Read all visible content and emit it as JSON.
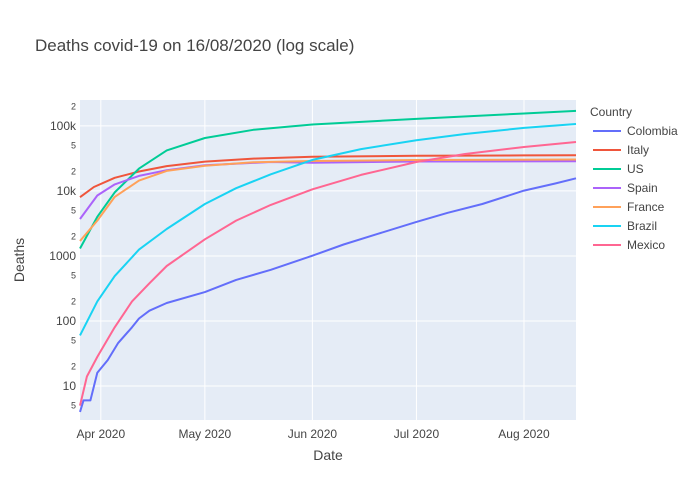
{
  "chart_data": {
    "type": "line",
    "title": "Deaths covid-19 on 16/08/2020  (log scale)",
    "xlabel": "Date",
    "ylabel": "Deaths",
    "y_scale": "log",
    "grid": true,
    "legend_title": "Country",
    "legend_position": "right",
    "xlim": [
      "2020-03-26",
      "2020-08-16"
    ],
    "ylim": [
      3,
      250000
    ],
    "x_ticks": [
      {
        "date": "2020-04-01",
        "label": "Apr 2020"
      },
      {
        "date": "2020-05-01",
        "label": "May 2020"
      },
      {
        "date": "2020-06-01",
        "label": "Jun 2020"
      },
      {
        "date": "2020-07-01",
        "label": "Jul 2020"
      },
      {
        "date": "2020-08-01",
        "label": "Aug 2020"
      }
    ],
    "y_major_ticks": [
      {
        "value": 10,
        "label": "10"
      },
      {
        "value": 100,
        "label": "100"
      },
      {
        "value": 1000,
        "label": "1000"
      },
      {
        "value": 10000,
        "label": "10k"
      },
      {
        "value": 100000,
        "label": "100k"
      }
    ],
    "y_minor_ticks": [
      {
        "value": 5,
        "label": "5"
      },
      {
        "value": 20,
        "label": "2"
      },
      {
        "value": 50,
        "label": "5"
      },
      {
        "value": 200,
        "label": "2"
      },
      {
        "value": 500,
        "label": "5"
      },
      {
        "value": 2000,
        "label": "2"
      },
      {
        "value": 5000,
        "label": "5"
      },
      {
        "value": 20000,
        "label": "2"
      },
      {
        "value": 50000,
        "label": "5"
      },
      {
        "value": 200000,
        "label": "2"
      }
    ],
    "series": [
      {
        "name": "Colombia",
        "color": "#636efa",
        "points": [
          [
            "2020-03-26",
            4
          ],
          [
            "2020-03-27",
            6
          ],
          [
            "2020-03-29",
            6
          ],
          [
            "2020-03-31",
            16
          ],
          [
            "2020-04-03",
            25
          ],
          [
            "2020-04-06",
            46
          ],
          [
            "2020-04-10",
            80
          ],
          [
            "2020-04-12",
            109
          ],
          [
            "2020-04-15",
            144
          ],
          [
            "2020-04-20",
            189
          ],
          [
            "2020-05-01",
            278
          ],
          [
            "2020-05-10",
            428
          ],
          [
            "2020-05-20",
            613
          ],
          [
            "2020-06-01",
            1009
          ],
          [
            "2020-06-10",
            1500
          ],
          [
            "2020-06-20",
            2200
          ],
          [
            "2020-07-01",
            3334
          ],
          [
            "2020-07-10",
            4600
          ],
          [
            "2020-07-20",
            6300
          ],
          [
            "2020-08-01",
            10100
          ],
          [
            "2020-08-10",
            13000
          ],
          [
            "2020-08-16",
            15600
          ]
        ]
      },
      {
        "name": "Italy",
        "color": "#ef553b",
        "points": [
          [
            "2020-03-26",
            8000
          ],
          [
            "2020-03-30",
            11500
          ],
          [
            "2020-04-05",
            15900
          ],
          [
            "2020-04-12",
            19900
          ],
          [
            "2020-04-20",
            24100
          ],
          [
            "2020-05-01",
            28200
          ],
          [
            "2020-05-15",
            31400
          ],
          [
            "2020-06-01",
            33400
          ],
          [
            "2020-07-01",
            34800
          ],
          [
            "2020-08-01",
            35150
          ],
          [
            "2020-08-16",
            35400
          ]
        ]
      },
      {
        "name": "US",
        "color": "#00cc96",
        "points": [
          [
            "2020-03-26",
            1300
          ],
          [
            "2020-03-31",
            4000
          ],
          [
            "2020-04-05",
            9500
          ],
          [
            "2020-04-12",
            22000
          ],
          [
            "2020-04-20",
            42000
          ],
          [
            "2020-05-01",
            65000
          ],
          [
            "2020-05-15",
            87000
          ],
          [
            "2020-06-01",
            105000
          ],
          [
            "2020-07-01",
            128000
          ],
          [
            "2020-08-01",
            155000
          ],
          [
            "2020-08-16",
            170000
          ]
        ]
      },
      {
        "name": "Spain",
        "color": "#ab63fa",
        "points": [
          [
            "2020-03-26",
            3700
          ],
          [
            "2020-03-31",
            8500
          ],
          [
            "2020-04-05",
            12600
          ],
          [
            "2020-04-12",
            17000
          ],
          [
            "2020-04-20",
            20800
          ],
          [
            "2020-05-01",
            24800
          ],
          [
            "2020-05-20",
            27800
          ],
          [
            "2020-06-01",
            27127
          ],
          [
            "2020-07-01",
            28360
          ],
          [
            "2020-08-16",
            28617
          ]
        ]
      },
      {
        "name": "France",
        "color": "#ffa15a",
        "points": [
          [
            "2020-03-26",
            1700
          ],
          [
            "2020-03-31",
            3500
          ],
          [
            "2020-04-05",
            8100
          ],
          [
            "2020-04-12",
            14400
          ],
          [
            "2020-04-20",
            20300
          ],
          [
            "2020-05-01",
            24400
          ],
          [
            "2020-05-15",
            27500
          ],
          [
            "2020-06-01",
            28800
          ],
          [
            "2020-07-01",
            29850
          ],
          [
            "2020-08-16",
            30410
          ]
        ]
      },
      {
        "name": "Brazil",
        "color": "#19d3f3",
        "points": [
          [
            "2020-03-26",
            60
          ],
          [
            "2020-03-31",
            200
          ],
          [
            "2020-04-05",
            490
          ],
          [
            "2020-04-12",
            1250
          ],
          [
            "2020-04-20",
            2600
          ],
          [
            "2020-05-01",
            6300
          ],
          [
            "2020-05-10",
            11000
          ],
          [
            "2020-05-20",
            18000
          ],
          [
            "2020-06-01",
            30000
          ],
          [
            "2020-06-15",
            44000
          ],
          [
            "2020-07-01",
            60000
          ],
          [
            "2020-07-15",
            75000
          ],
          [
            "2020-08-01",
            93000
          ],
          [
            "2020-08-16",
            107000
          ]
        ]
      },
      {
        "name": "Mexico",
        "color": "#ff6692",
        "points": [
          [
            "2020-03-26",
            5
          ],
          [
            "2020-03-28",
            14
          ],
          [
            "2020-03-31",
            28
          ],
          [
            "2020-04-05",
            80
          ],
          [
            "2020-04-10",
            200
          ],
          [
            "2020-04-15",
            380
          ],
          [
            "2020-04-20",
            700
          ],
          [
            "2020-05-01",
            1800
          ],
          [
            "2020-05-10",
            3500
          ],
          [
            "2020-05-20",
            6100
          ],
          [
            "2020-06-01",
            10600
          ],
          [
            "2020-06-15",
            17600
          ],
          [
            "2020-07-01",
            27800
          ],
          [
            "2020-07-15",
            36900
          ],
          [
            "2020-08-01",
            47400
          ],
          [
            "2020-08-16",
            56500
          ]
        ]
      }
    ]
  }
}
